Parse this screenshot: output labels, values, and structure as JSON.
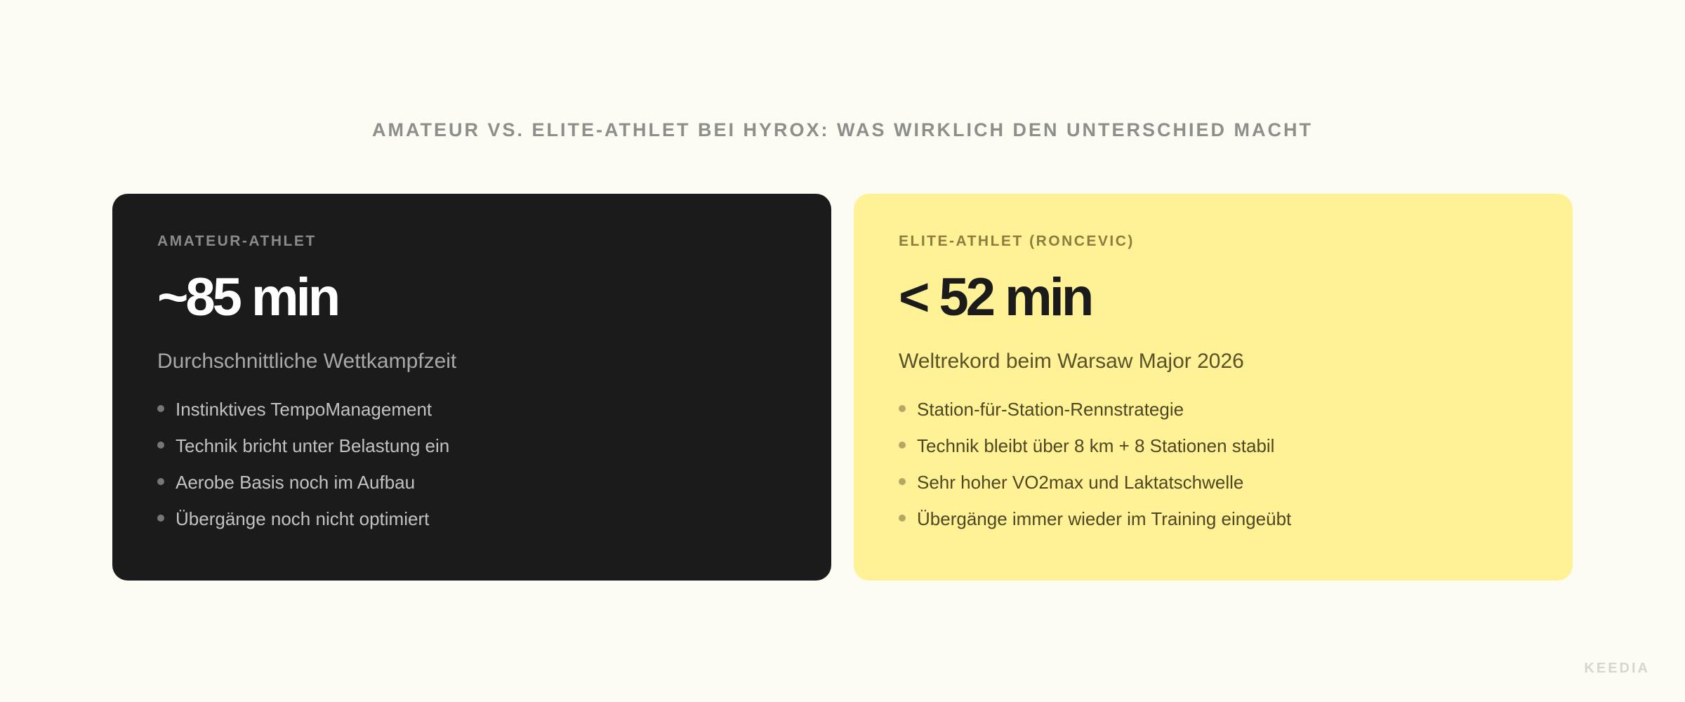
{
  "title": "AMATEUR VS. ELITE-ATHLET BEI HYROX: WAS WIRKLICH DEN UNTERSCHIED MACHT",
  "cards": [
    {
      "label": "AMATEUR-ATHLET",
      "value": "~85 min",
      "subtitle": "Durchschnittliche Wettkampfzeit",
      "bullets": [
        "Instinktives TempoManagement",
        "Technik bricht unter Belastung ein",
        "Aerobe Basis noch im Aufbau",
        "Übergänge noch nicht optimiert"
      ]
    },
    {
      "label": "ELITE-ATHLET (RONCEVIC)",
      "value": "< 52 min",
      "subtitle": "Weltrekord beim Warsaw Major 2026",
      "bullets": [
        "Station-für-Station-Rennstrategie",
        "Technik bleibt über 8 km + 8 Stationen stabil",
        "Sehr hoher VO2max und Laktatschwelle",
        "Übergänge immer wieder im Training eingeübt"
      ]
    }
  ],
  "brand": "KEEDIA",
  "colors": {
    "background": "#fdfcf3",
    "dark_card": "#1b1b1b",
    "highlight_card": "#fff196"
  }
}
